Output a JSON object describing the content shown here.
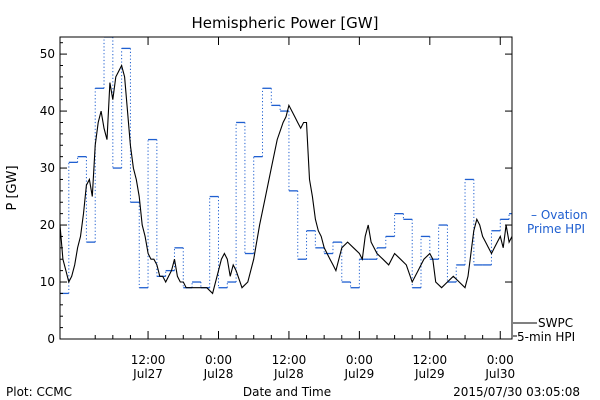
{
  "page": {
    "title": "Hemispheric Power [GW]",
    "xlabel": "Date and Time",
    "ylabel": "P [GW]",
    "footer_left": "Plot: CCMC",
    "footer_right": "2015/07/30 03:05:08"
  },
  "colors": {
    "swpc": "#000000",
    "ovation": "#1f5fd0",
    "axes": "#000000",
    "background": "#ffffff"
  },
  "chart_data": {
    "type": "line",
    "title": "Hemispheric Power [GW]",
    "xlabel": "Date and Time",
    "ylabel": "P [GW]",
    "x_unit": "hours since 2015-07-27 00:00 UTC",
    "xlim": [
      -3,
      74
    ],
    "ylim": [
      0,
      53
    ],
    "y_ticks": [
      0,
      10,
      20,
      30,
      40,
      50
    ],
    "x_ticks": [
      {
        "x": 12,
        "line1": "12:00",
        "line2": "Jul27"
      },
      {
        "x": 24,
        "line1": "0:00",
        "line2": "Jul28"
      },
      {
        "x": 36,
        "line1": "12:00",
        "line2": "Jul28"
      },
      {
        "x": 48,
        "line1": "0:00",
        "line2": "Jul29"
      },
      {
        "x": 60,
        "line1": "12:00",
        "line2": "Jul29"
      },
      {
        "x": 72,
        "line1": "0:00",
        "line2": "Jul30"
      }
    ],
    "grid": false,
    "series": [
      {
        "name": "SWPC 5-min HPI",
        "label_lines": [
          "SWPC",
          "5-min HPI"
        ],
        "color": "#000000",
        "style": "solid",
        "x": [
          -3,
          -2.5,
          -2,
          -1.5,
          -1,
          -0.5,
          0,
          0.5,
          1,
          1.5,
          2,
          2.5,
          3,
          3.5,
          4,
          4.5,
          5,
          5.5,
          6,
          6.5,
          7,
          7.5,
          8,
          8.5,
          9,
          9.5,
          10,
          10.5,
          11,
          11.5,
          12,
          12.5,
          13,
          13.5,
          14,
          14.5,
          15,
          15.5,
          16,
          16.5,
          17,
          17.5,
          18,
          18.5,
          19,
          19.5,
          20,
          21,
          22,
          23,
          24,
          24.5,
          25,
          25.5,
          26,
          26.5,
          27,
          28,
          29,
          30,
          31,
          32,
          33,
          34,
          35,
          35.5,
          36,
          36.5,
          37,
          37.5,
          38,
          38.5,
          39,
          39.5,
          40,
          40.5,
          41,
          41.5,
          42,
          42.5,
          43,
          43.5,
          44,
          45,
          46,
          47,
          48,
          48.5,
          49,
          49.5,
          50,
          51,
          52,
          53,
          54,
          55,
          56,
          57,
          58,
          59,
          60,
          60.5,
          61,
          62,
          63,
          64,
          65,
          66,
          66.5,
          67,
          67.5,
          68,
          68.5,
          69,
          69.5,
          70,
          70.5,
          71,
          71.5,
          72,
          72.5,
          73,
          73.5,
          74
        ],
        "values": [
          20,
          14,
          12,
          10,
          11,
          13,
          16,
          18,
          22,
          27,
          28,
          25,
          34,
          38,
          40,
          37,
          35,
          45,
          42,
          46,
          47,
          48,
          46,
          40,
          34,
          30,
          28,
          25,
          20,
          18,
          15,
          14,
          14,
          13,
          11,
          11,
          10,
          11,
          12,
          14,
          11,
          10,
          10,
          9,
          9,
          9,
          9,
          9,
          9,
          8,
          12,
          14,
          15,
          14,
          11,
          13,
          12,
          9,
          10,
          14,
          20,
          25,
          30,
          35,
          38,
          39,
          41,
          40,
          39,
          38,
          37,
          38,
          38,
          28,
          25,
          21,
          19,
          18,
          16,
          15,
          14,
          13,
          12,
          16,
          17,
          16,
          15,
          14,
          18,
          20,
          17,
          15,
          14,
          13,
          15,
          14,
          13,
          10,
          12,
          14,
          15,
          14,
          10,
          9,
          10,
          11,
          10,
          9,
          11,
          15,
          19,
          21,
          20,
          18,
          17,
          16,
          15,
          16,
          17,
          18,
          16,
          20,
          17,
          18
        ]
      },
      {
        "name": "Ovation Prime HPI",
        "label_lines": [
          "– Ovation",
          "Prime HPI"
        ],
        "color": "#1f5fd0",
        "style": "dotted-step",
        "x": [
          -3,
          -1.5,
          0,
          1.5,
          3,
          4.5,
          6,
          7.5,
          9,
          10.5,
          12,
          13.5,
          15,
          16.5,
          18,
          19.5,
          21,
          22.5,
          24,
          25.5,
          27,
          28.5,
          30,
          31.5,
          33,
          34.5,
          36,
          37.5,
          39,
          40.5,
          42,
          43.5,
          45,
          46.5,
          48,
          49.5,
          51,
          52.5,
          54,
          55.5,
          57,
          58.5,
          60,
          61.5,
          63,
          64.5,
          66,
          67.5,
          69,
          70.5,
          72,
          73.5
        ],
        "values": [
          8,
          31,
          32,
          17,
          44,
          53,
          30,
          51,
          24,
          9,
          35,
          11,
          12,
          16,
          9,
          10,
          9,
          25,
          9,
          10,
          38,
          15,
          32,
          44,
          41,
          40,
          26,
          14,
          19,
          16,
          15,
          17,
          10,
          9,
          14,
          14,
          16,
          18,
          22,
          21,
          9,
          18,
          14,
          20,
          10,
          13,
          28,
          13,
          13,
          19,
          21,
          22
        ]
      }
    ]
  }
}
